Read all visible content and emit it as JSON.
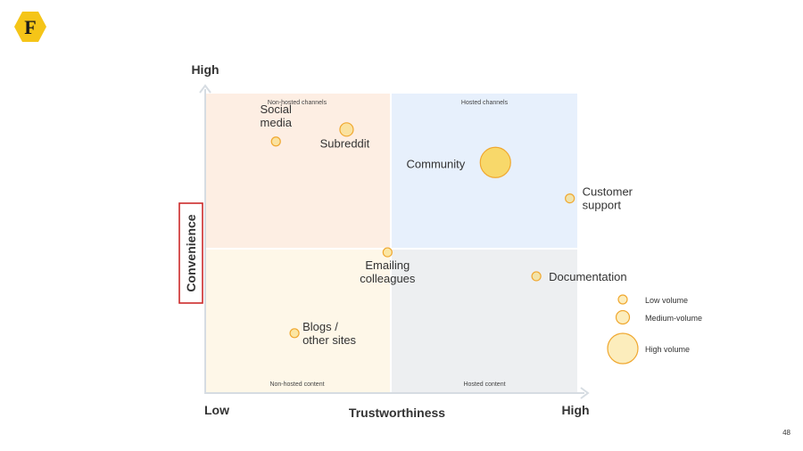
{
  "logo": {
    "letter": "F",
    "color": "#f5c518"
  },
  "axes": {
    "y_label": "Convenience",
    "x_label": "Trustworthiness",
    "y_high": "High",
    "x_low": "Low",
    "x_high": "High"
  },
  "quadrants": [
    {
      "label": "Non-hosted channels",
      "color": "#fdeee3"
    },
    {
      "label": "Hosted channels",
      "color": "#e7f0fc"
    },
    {
      "label": "Non-hosted content",
      "color": "#fef7e8"
    },
    {
      "label": "Hosted content",
      "color": "#edeff1"
    }
  ],
  "chart_data": {
    "type": "scatter",
    "xlabel": "Trustworthiness",
    "ylabel": "Convenience",
    "xlim": [
      0,
      1
    ],
    "ylim": [
      0,
      1
    ],
    "series": [
      {
        "name": "",
        "points": [
          {
            "label": "Social media",
            "x": 0.19,
            "y": 0.84,
            "volume": "Low volume"
          },
          {
            "label": "Subreddit",
            "x": 0.38,
            "y": 0.88,
            "volume": "Medium-volume"
          },
          {
            "label": "Community",
            "x": 0.78,
            "y": 0.77,
            "volume": "High volume"
          },
          {
            "label": "Customer support",
            "x": 0.98,
            "y": 0.65,
            "volume": "Low volume"
          },
          {
            "label": "Emailing colleagues",
            "x": 0.49,
            "y": 0.47,
            "volume": "Low volume"
          },
          {
            "label": "Documentation",
            "x": 0.89,
            "y": 0.39,
            "volume": "Low volume"
          },
          {
            "label": "Blogs / other sites",
            "x": 0.24,
            "y": 0.2,
            "volume": "Low volume"
          }
        ]
      }
    ],
    "legend": [
      "Low volume",
      "Medium-volume",
      "High volume"
    ],
    "legend_position": "right",
    "bubble_fill": "#f8d86a",
    "bubble_stroke": "#f0a830"
  },
  "page_number": "48"
}
